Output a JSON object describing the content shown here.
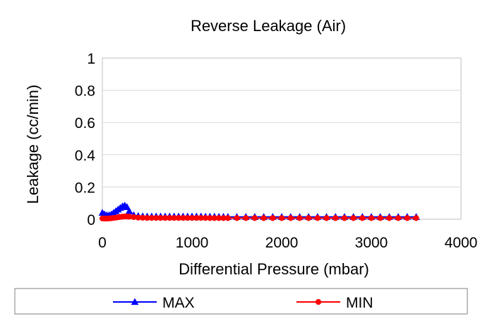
{
  "chart_data": {
    "type": "line",
    "title": "Reverse Leakage (Air)",
    "xlabel": "Differential Pressure (mbar)",
    "ylabel": "Leakage (cc/min)",
    "xlim": [
      0,
      4000
    ],
    "ylim": [
      0,
      1
    ],
    "xticks": [
      "0",
      "1000",
      "2000",
      "3000",
      "4000"
    ],
    "yticks": [
      "0",
      "0.2",
      "0.4",
      "0.6",
      "0.8",
      "1"
    ],
    "grid": "horizontal",
    "legend_position": "bottom",
    "series": [
      {
        "name": "MAX",
        "color": "#0000ff",
        "marker": "triangle",
        "x": [
          0,
          25,
          50,
          75,
          100,
          125,
          150,
          175,
          200,
          225,
          250,
          275,
          300,
          350,
          400,
          450,
          500,
          550,
          600,
          650,
          700,
          750,
          800,
          850,
          900,
          950,
          1000,
          1050,
          1100,
          1150,
          1200,
          1250,
          1300,
          1350,
          1400,
          1500,
          1600,
          1700,
          1800,
          1900,
          2000,
          2100,
          2200,
          2300,
          2400,
          2500,
          2600,
          2700,
          2800,
          2900,
          3000,
          3100,
          3200,
          3300,
          3400,
          3500
        ],
        "y": [
          0.04,
          0.03,
          0.025,
          0.025,
          0.03,
          0.04,
          0.05,
          0.06,
          0.07,
          0.08,
          0.085,
          0.075,
          0.05,
          0.025,
          0.02,
          0.018,
          0.017,
          0.017,
          0.017,
          0.017,
          0.017,
          0.017,
          0.017,
          0.017,
          0.017,
          0.017,
          0.017,
          0.017,
          0.017,
          0.016,
          0.016,
          0.016,
          0.015,
          0.015,
          0.014,
          0.014,
          0.014,
          0.014,
          0.014,
          0.014,
          0.014,
          0.014,
          0.014,
          0.014,
          0.014,
          0.014,
          0.014,
          0.014,
          0.014,
          0.014,
          0.014,
          0.014,
          0.014,
          0.014,
          0.014,
          0.014
        ]
      },
      {
        "name": "MIN",
        "color": "#ff0000",
        "marker": "circle",
        "x": [
          0,
          25,
          50,
          75,
          100,
          125,
          150,
          175,
          200,
          225,
          250,
          275,
          300,
          350,
          400,
          450,
          500,
          550,
          600,
          650,
          700,
          750,
          800,
          850,
          900,
          950,
          1000,
          1050,
          1100,
          1150,
          1200,
          1250,
          1300,
          1350,
          1400,
          1500,
          1600,
          1700,
          1800,
          1900,
          2000,
          2100,
          2200,
          2300,
          2400,
          2500,
          2600,
          2700,
          2800,
          2900,
          3000,
          3100,
          3200,
          3300,
          3400,
          3500
        ],
        "y": [
          0.005,
          0.004,
          0.004,
          0.005,
          0.006,
          0.008,
          0.01,
          0.012,
          0.014,
          0.016,
          0.017,
          0.017,
          0.016,
          0.013,
          0.01,
          0.009,
          0.008,
          0.008,
          0.008,
          0.008,
          0.008,
          0.008,
          0.008,
          0.008,
          0.008,
          0.008,
          0.008,
          0.008,
          0.008,
          0.008,
          0.007,
          0.007,
          0.007,
          0.007,
          0.007,
          0.007,
          0.007,
          0.007,
          0.007,
          0.007,
          0.007,
          0.007,
          0.007,
          0.007,
          0.007,
          0.007,
          0.007,
          0.007,
          0.007,
          0.007,
          0.007,
          0.007,
          0.007,
          0.007,
          0.007,
          0.007
        ]
      }
    ]
  }
}
